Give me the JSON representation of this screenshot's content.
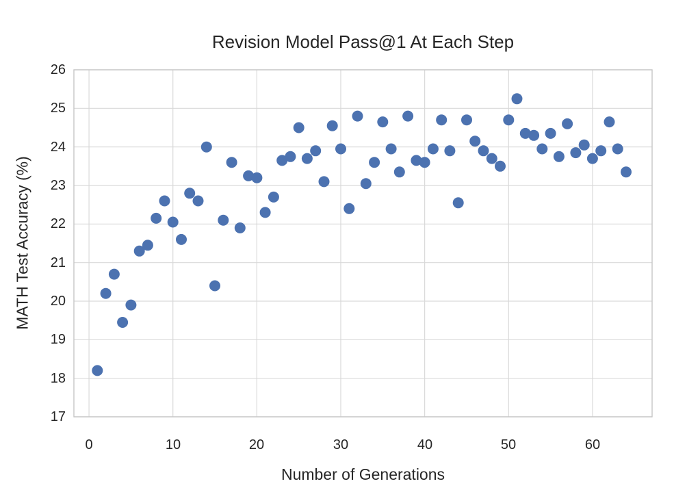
{
  "chart_data": {
    "type": "scatter",
    "title": "Revision Model Pass@1 At Each Step",
    "xlabel": "Number of Generations",
    "ylabel": "MATH Test Accuracy (%)",
    "x": [
      1,
      2,
      3,
      4,
      5,
      6,
      7,
      8,
      9,
      10,
      11,
      12,
      13,
      14,
      15,
      16,
      17,
      18,
      19,
      20,
      21,
      22,
      23,
      24,
      25,
      26,
      27,
      28,
      29,
      30,
      31,
      32,
      33,
      34,
      35,
      36,
      37,
      38,
      39,
      40,
      41,
      42,
      43,
      44,
      45,
      46,
      47,
      48,
      49,
      50,
      51,
      52,
      53,
      54,
      55,
      56,
      57,
      58,
      59,
      60,
      61,
      62,
      63,
      64
    ],
    "y": [
      18.2,
      20.2,
      20.7,
      19.45,
      19.9,
      21.3,
      21.45,
      22.15,
      22.6,
      22.05,
      21.6,
      22.8,
      22.6,
      24.0,
      20.4,
      22.1,
      23.6,
      21.9,
      23.25,
      23.2,
      22.3,
      22.7,
      23.65,
      23.75,
      24.5,
      23.7,
      23.9,
      23.1,
      24.55,
      23.95,
      22.4,
      24.8,
      23.05,
      23.6,
      24.65,
      23.95,
      23.35,
      24.8,
      23.65,
      23.6,
      23.95,
      24.7,
      23.9,
      22.55,
      24.7,
      24.15,
      23.9,
      23.7,
      23.5,
      24.7,
      25.25,
      24.35,
      24.3,
      23.95,
      24.35,
      23.75,
      24.6,
      23.85,
      24.05,
      23.7,
      23.9,
      24.65,
      23.95,
      23.35
    ],
    "xlim": [
      -1.8,
      67.1
    ],
    "ylim": [
      17,
      26
    ],
    "xticks": [
      0,
      10,
      20,
      30,
      40,
      50,
      60
    ],
    "yticks": [
      17,
      18,
      19,
      20,
      21,
      22,
      23,
      24,
      25,
      26
    ],
    "grid": true,
    "legend": false,
    "marker_color": "#4C72B0",
    "grid_color": "#d9d9d9",
    "spine_color": "#c6c6c6",
    "background_color": "#ffffff"
  }
}
